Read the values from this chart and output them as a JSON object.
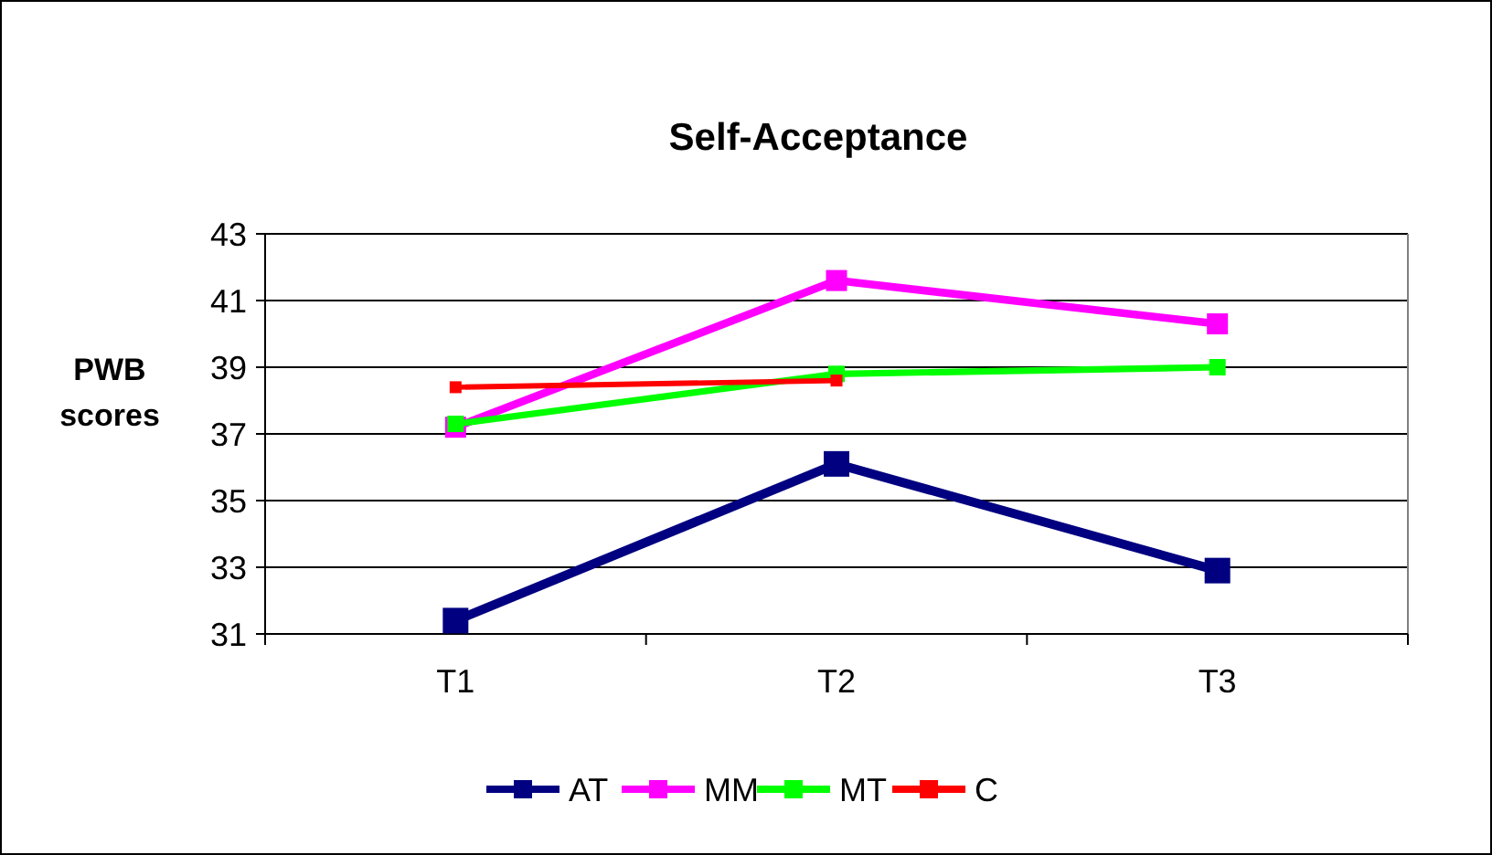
{
  "chart_data": {
    "type": "line",
    "title": "Self-Acceptance",
    "ylabel": "PWB scores",
    "categories": [
      "T1",
      "T2",
      "T3"
    ],
    "series": [
      {
        "name": "AT",
        "color": "#000080",
        "values": [
          31.4,
          36.1,
          32.9
        ]
      },
      {
        "name": "MM",
        "color": "#ff00ff",
        "values": [
          37.2,
          41.6,
          40.3
        ]
      },
      {
        "name": "MT",
        "color": "#00ff00",
        "values": [
          37.3,
          38.8,
          39.0
        ]
      },
      {
        "name": "C",
        "color": "#ff0000",
        "values": [
          38.4,
          38.6,
          null
        ]
      }
    ],
    "ylim": [
      31,
      43
    ],
    "yticks": [
      31,
      33,
      35,
      37,
      39,
      41,
      43
    ],
    "grid": "y",
    "legend": "bottom",
    "marker": "square",
    "line_style": "solid"
  }
}
